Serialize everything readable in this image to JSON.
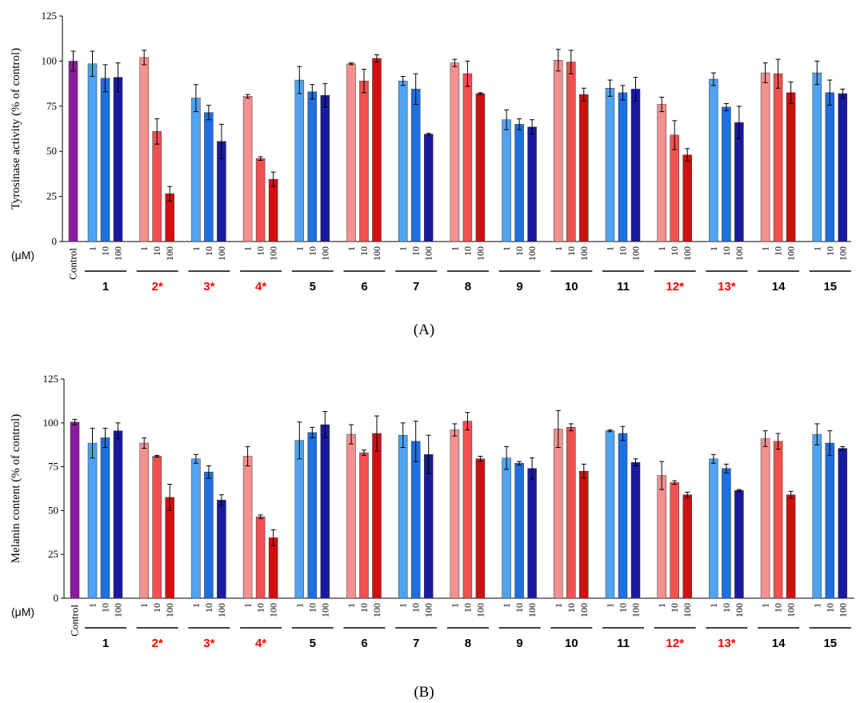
{
  "figure": {
    "panel_labels": [
      "(A)",
      "(B)"
    ],
    "unit_label": "(μM)",
    "control_label": "Control",
    "concentrations": [
      "1",
      "10",
      "100"
    ]
  },
  "colors": {
    "control": "#8B1A9E",
    "blue": [
      "#4FA3F0",
      "#1E6FE0",
      "#1A1AA0"
    ],
    "red": [
      "#F59090",
      "#F05050",
      "#D01010"
    ],
    "highlight_label": "#FF0000",
    "normal_label": "#000000"
  },
  "chart_data": [
    {
      "type": "bar",
      "ylabel": "Tyrosinase activity (% of control)",
      "ylim": [
        0,
        125
      ],
      "yticks": [
        0,
        25,
        50,
        75,
        100,
        125
      ],
      "grid": false,
      "control": {
        "value": 100,
        "error": 5.5
      },
      "groups": [
        {
          "label": "1",
          "highlight": false,
          "palette": "blue",
          "values": [
            98.5,
            90.5,
            91
          ],
          "errors": [
            7,
            7.5,
            8
          ]
        },
        {
          "label": "2*",
          "highlight": true,
          "palette": "red",
          "values": [
            102,
            61,
            26.5
          ],
          "errors": [
            4,
            7,
            4
          ]
        },
        {
          "label": "3*",
          "highlight": true,
          "palette": "blue",
          "values": [
            79.5,
            71.5,
            55.5
          ],
          "errors": [
            7.5,
            4,
            9.5
          ]
        },
        {
          "label": "4*",
          "highlight": true,
          "palette": "red",
          "values": [
            80.5,
            46,
            34.5
          ],
          "errors": [
            1,
            1,
            4
          ]
        },
        {
          "label": "5",
          "highlight": false,
          "palette": "blue",
          "values": [
            89.5,
            83,
            81
          ],
          "errors": [
            7.5,
            4,
            6.5
          ]
        },
        {
          "label": "6",
          "highlight": false,
          "palette": "red",
          "values": [
            98.5,
            89,
            101.5
          ],
          "errors": [
            0.5,
            6.5,
            2
          ]
        },
        {
          "label": "7",
          "highlight": false,
          "palette": "blue",
          "values": [
            89,
            84.5,
            59.5
          ],
          "errors": [
            2.5,
            8.5,
            0.5
          ]
        },
        {
          "label": "8",
          "highlight": false,
          "palette": "red",
          "values": [
            99,
            93,
            82
          ],
          "errors": [
            2,
            7,
            0.5
          ]
        },
        {
          "label": "9",
          "highlight": false,
          "palette": "blue",
          "values": [
            67.5,
            65,
            63.5
          ],
          "errors": [
            5.5,
            3,
            4
          ]
        },
        {
          "label": "10",
          "highlight": false,
          "palette": "red",
          "values": [
            100.5,
            99.5,
            81.5
          ],
          "errors": [
            6,
            6.5,
            3.5
          ]
        },
        {
          "label": "11",
          "highlight": false,
          "palette": "blue",
          "values": [
            85,
            82.5,
            84.5
          ],
          "errors": [
            4.5,
            4,
            6.5
          ]
        },
        {
          "label": "12*",
          "highlight": true,
          "palette": "red",
          "values": [
            76,
            59,
            48
          ],
          "errors": [
            4,
            8,
            3.5
          ]
        },
        {
          "label": "13*",
          "highlight": true,
          "palette": "blue",
          "values": [
            90,
            74.5,
            66
          ],
          "errors": [
            3.5,
            2,
            9
          ]
        },
        {
          "label": "14",
          "highlight": false,
          "palette": "red",
          "values": [
            93.5,
            93,
            82.5
          ],
          "errors": [
            5.5,
            8,
            6
          ]
        },
        {
          "label": "15",
          "highlight": false,
          "palette": "blue",
          "values": [
            93.5,
            82.5,
            82
          ],
          "errors": [
            6.5,
            7,
            2.5
          ]
        }
      ]
    },
    {
      "type": "bar",
      "ylabel": "Melanin content (% of control)",
      "ylim": [
        0,
        125
      ],
      "yticks": [
        0,
        25,
        50,
        75,
        100,
        125
      ],
      "grid": false,
      "control": {
        "value": 100.5,
        "error": 1.5
      },
      "groups": [
        {
          "label": "1",
          "highlight": false,
          "palette": "blue",
          "values": [
            88.5,
            91.5,
            95.5
          ],
          "errors": [
            8.5,
            5.5,
            4.5
          ]
        },
        {
          "label": "2*",
          "highlight": true,
          "palette": "red",
          "values": [
            88.5,
            81,
            57.5
          ],
          "errors": [
            3,
            0.5,
            7.5
          ]
        },
        {
          "label": "3*",
          "highlight": true,
          "palette": "blue",
          "values": [
            79.5,
            72,
            56
          ],
          "errors": [
            2.5,
            3.5,
            3
          ]
        },
        {
          "label": "4*",
          "highlight": true,
          "palette": "red",
          "values": [
            81,
            46.5,
            34.5
          ],
          "errors": [
            5.5,
            1,
            4.5
          ]
        },
        {
          "label": "5",
          "highlight": false,
          "palette": "blue",
          "values": [
            90,
            94.5,
            99
          ],
          "errors": [
            10.5,
            3,
            7.5
          ]
        },
        {
          "label": "6",
          "highlight": false,
          "palette": "red",
          "values": [
            93.5,
            83,
            94
          ],
          "errors": [
            5.5,
            1.5,
            10
          ]
        },
        {
          "label": "7",
          "highlight": false,
          "palette": "blue",
          "values": [
            93,
            89.5,
            82
          ],
          "errors": [
            7,
            11.5,
            11
          ]
        },
        {
          "label": "8",
          "highlight": false,
          "palette": "red",
          "values": [
            96,
            101,
            79.5
          ],
          "errors": [
            3.5,
            5,
            1.5
          ]
        },
        {
          "label": "9",
          "highlight": false,
          "palette": "blue",
          "values": [
            80,
            77,
            74
          ],
          "errors": [
            6.5,
            1,
            6
          ]
        },
        {
          "label": "10",
          "highlight": false,
          "palette": "red",
          "values": [
            96.5,
            97.5,
            72.5
          ],
          "errors": [
            10.5,
            2,
            4
          ]
        },
        {
          "label": "11",
          "highlight": false,
          "palette": "blue",
          "values": [
            95.5,
            94,
            77.5
          ],
          "errors": [
            0.5,
            4,
            2
          ]
        },
        {
          "label": "12*",
          "highlight": true,
          "palette": "red",
          "values": [
            70,
            66,
            59
          ],
          "errors": [
            8,
            1,
            1.5
          ]
        },
        {
          "label": "13*",
          "highlight": true,
          "palette": "blue",
          "values": [
            79.5,
            74,
            61.5
          ],
          "errors": [
            2.5,
            2.5,
            0.5
          ]
        },
        {
          "label": "14",
          "highlight": false,
          "palette": "red",
          "values": [
            91,
            89.5,
            59
          ],
          "errors": [
            4.5,
            4.5,
            2
          ]
        },
        {
          "label": "15",
          "highlight": false,
          "palette": "blue",
          "values": [
            93.5,
            88.5,
            85.5
          ],
          "errors": [
            6,
            7,
            1
          ]
        }
      ]
    }
  ]
}
